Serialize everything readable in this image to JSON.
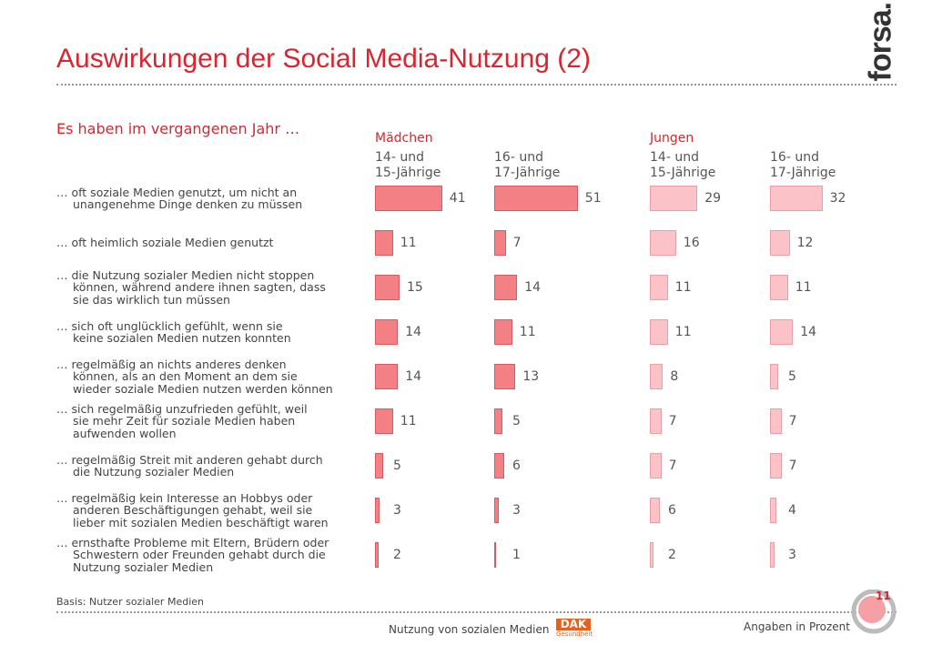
{
  "chart_data": {
    "type": "bar",
    "title": "Auswirkungen der Social Media-Nutzung (2)",
    "subtitle": "Es haben im vergangenen Jahr …",
    "groups": [
      "Mädchen",
      "Jungen"
    ],
    "categories": [
      "… oft soziale Medien genutzt, um nicht an\nunangenehme Dinge denken zu müssen",
      "… oft heimlich soziale Medien genutzt",
      "… die Nutzung sozialer Medien nicht stoppen\nkönnen, während andere ihnen sagten, dass\nsie das wirklich tun müssen",
      "… sich oft unglücklich gefühlt, wenn sie\nkeine sozialen Medien nutzen konnten",
      "… regelmäßig an nichts anderes denken\nkönnen, als an den Moment an dem sie\nwieder soziale Medien nutzen werden können",
      "… sich regelmäßig unzufrieden gefühlt, weil\nsie mehr Zeit für soziale Medien haben\naufwenden wollen",
      "… regelmäßig Streit mit anderen gehabt durch\ndie Nutzung sozialer Medien",
      "… regelmäßig kein Interesse an Hobbys oder\nanderen Beschäftigungen gehabt, weil sie\nlieber mit sozialen Medien beschäftigt waren",
      "… ernsthafte Probleme mit Eltern, Brüdern oder\nSchwestern oder Freunden gehabt durch die\nNutzung sozialer Medien"
    ],
    "series": [
      {
        "name": "14- und\n15-Jährige",
        "color": "#f28084",
        "values": [
          41,
          11,
          15,
          14,
          14,
          11,
          5,
          3,
          2
        ]
      },
      {
        "name": "16- und\n17-Jährige",
        "color": "#f28084",
        "values": [
          51,
          7,
          14,
          11,
          13,
          5,
          6,
          3,
          1
        ]
      },
      {
        "name": "14- und\n15-Jährige",
        "color": "#fbc3c7",
        "values": [
          29,
          16,
          11,
          11,
          8,
          7,
          7,
          6,
          2
        ]
      },
      {
        "name": "16- und\n17-Jährige",
        "color": "#fbc3c7",
        "values": [
          32,
          12,
          11,
          14,
          5,
          7,
          7,
          4,
          3
        ]
      }
    ]
  },
  "footer": {
    "basis": "Basis: Nutzer sozialer Medien",
    "topic": "Nutzung von sozialen Medien",
    "unit": "Angaben in Prozent",
    "page": "11",
    "logo": "forsa.",
    "sponsor": "DAK",
    "sponsor_sub": "Gesundheit"
  }
}
